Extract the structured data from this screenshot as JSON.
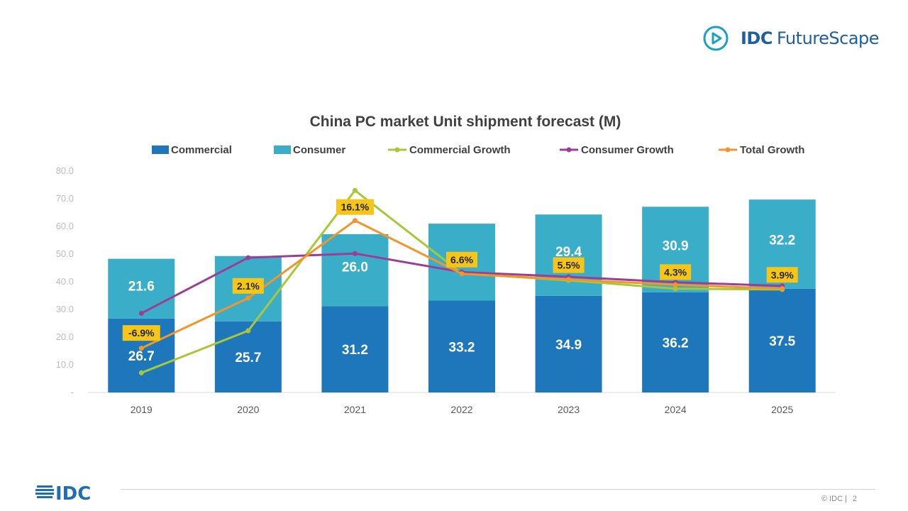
{
  "brand": {
    "idc": "IDC",
    "product": "FutureScape"
  },
  "footer": {
    "logo": "IDC",
    "copyright": "© IDC |",
    "page": "2"
  },
  "chart_data": {
    "type": "bar",
    "title": "China PC market Unit shipment forecast (M)",
    "categories": [
      "2019",
      "2020",
      "2021",
      "2022",
      "2023",
      "2024",
      "2025"
    ],
    "ylim": [
      0,
      80
    ],
    "yticks": [
      0,
      10,
      20,
      30,
      40,
      50,
      60,
      70,
      80
    ],
    "ytick_labels": [
      "-",
      "10.0",
      "20.0",
      "30.0",
      "40.0",
      "50.0",
      "60.0",
      "70.0",
      "80.0"
    ],
    "stacked_series": [
      {
        "name": "Commercial",
        "color": "#1f77bb",
        "values": [
          26.7,
          25.7,
          31.2,
          33.2,
          34.9,
          36.2,
          37.5
        ]
      },
      {
        "name": "Consumer",
        "color": "#3aaec8",
        "values": [
          21.6,
          23.6,
          26.0,
          27.8,
          29.4,
          30.9,
          32.2
        ]
      }
    ],
    "line_series": [
      {
        "name": "Commercial Growth",
        "color": "#a8c83a",
        "values": [
          7.1,
          22.3,
          73.0,
          43.0,
          40.5,
          37.5,
          37.2
        ]
      },
      {
        "name": "Consumer Growth",
        "color": "#9b3f96",
        "values": [
          28.6,
          48.7,
          50.2,
          43.5,
          41.8,
          39.8,
          38.5
        ]
      },
      {
        "name": "Total Growth",
        "color": "#f0962a",
        "values": [
          16.0,
          34.1,
          62.1,
          42.9,
          40.8,
          38.9,
          37.5
        ]
      }
    ],
    "growth_labels": [
      {
        "category": "2019",
        "text": "-6.9%",
        "y": 21.5
      },
      {
        "category": "2020",
        "text": "2.1%",
        "y": 38.5
      },
      {
        "category": "2021",
        "text": "16.1%",
        "y": 67.0
      },
      {
        "category": "2022",
        "text": "6.6%",
        "y": 48.0
      },
      {
        "category": "2023",
        "text": "5.5%",
        "y": 46.0
      },
      {
        "category": "2024",
        "text": "4.3%",
        "y": 43.5
      },
      {
        "category": "2025",
        "text": "3.9%",
        "y": 42.5
      }
    ],
    "legend": [
      "Commercial",
      "Consumer",
      "Commercial Growth",
      "Consumer Growth",
      "Total Growth"
    ],
    "legend_position": "top",
    "grid": false,
    "label_color": "#f5c518"
  }
}
